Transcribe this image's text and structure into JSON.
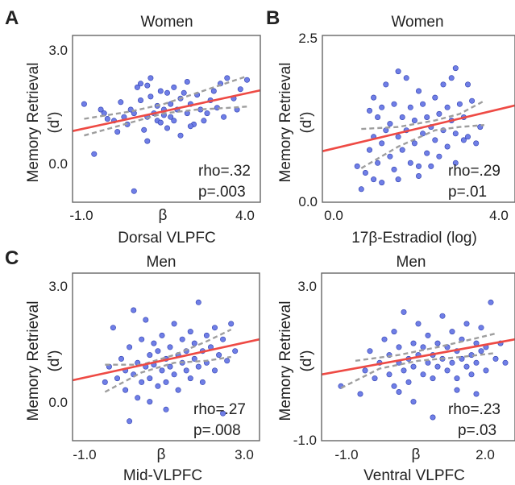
{
  "panel_labels": {
    "a": "A",
    "b": "B",
    "c": "C"
  },
  "chart_data": [
    {
      "type": "scatter",
      "title": "Women",
      "xlabel": "Dorsal VLPFC",
      "ylabel": "Memory Retrieval",
      "ylabel_unit": "(d')",
      "x_center_label": "β",
      "xlim": [
        -1.25,
        4.4
      ],
      "ylim": [
        -1.2,
        3.3
      ],
      "xticks": [
        {
          "v": -1.0,
          "label": "-1.0"
        },
        {
          "v": 4.0,
          "label": "4.0"
        }
      ],
      "yticks": [
        {
          "v": 0.0,
          "label": "0.0"
        },
        {
          "v": 3.0,
          "label": "3.0"
        }
      ],
      "stats": {
        "rho": "rho=.32",
        "p": "p=.003"
      },
      "fit": [
        [
          -1.25,
          0.72
        ],
        [
          4.4,
          1.82
        ]
      ],
      "ci_upper": [
        [
          -0.9,
          1.05
        ],
        [
          0.5,
          1.25
        ],
        [
          1.5,
          1.45
        ],
        [
          2.5,
          1.75
        ],
        [
          3.5,
          2.05
        ],
        [
          4.0,
          2.2
        ]
      ],
      "ci_lower": [
        [
          -0.9,
          0.6
        ],
        [
          0.5,
          0.95
        ],
        [
          1.5,
          1.2
        ],
        [
          2.5,
          1.3
        ],
        [
          3.5,
          1.35
        ],
        [
          4.0,
          1.38
        ]
      ],
      "points": [
        [
          -0.9,
          1.45
        ],
        [
          -0.6,
          0.1
        ],
        [
          -0.4,
          1.3
        ],
        [
          -0.2,
          1.05
        ],
        [
          0.0,
          1.0
        ],
        [
          0.1,
          0.7
        ],
        [
          0.2,
          1.5
        ],
        [
          0.3,
          1.1
        ],
        [
          0.4,
          0.9
        ],
        [
          0.5,
          1.3
        ],
        [
          0.6,
          1.2
        ],
        [
          0.7,
          1.9
        ],
        [
          0.8,
          2.0
        ],
        [
          0.8,
          1.55
        ],
        [
          0.9,
          0.75
        ],
        [
          1.0,
          1.1
        ],
        [
          1.0,
          0.45
        ],
        [
          1.1,
          2.15
        ],
        [
          1.1,
          1.65
        ],
        [
          1.2,
          1.2
        ],
        [
          1.3,
          1.4
        ],
        [
          1.3,
          1.0
        ],
        [
          1.4,
          1.8
        ],
        [
          1.4,
          0.95
        ],
        [
          1.5,
          1.3
        ],
        [
          1.6,
          1.75
        ],
        [
          1.6,
          0.8
        ],
        [
          1.7,
          1.1
        ],
        [
          1.7,
          1.45
        ],
        [
          1.8,
          1.9
        ],
        [
          1.8,
          1.0
        ],
        [
          1.9,
          1.3
        ],
        [
          2.0,
          1.6
        ],
        [
          2.0,
          0.6
        ],
        [
          2.1,
          1.75
        ],
        [
          2.2,
          1.2
        ],
        [
          2.2,
          2.05
        ],
        [
          2.3,
          1.45
        ],
        [
          2.4,
          0.9
        ],
        [
          2.5,
          1.7
        ],
        [
          2.6,
          1.3
        ],
        [
          2.7,
          1.0
        ],
        [
          2.8,
          1.2
        ],
        [
          2.9,
          1.55
        ],
        [
          3.0,
          1.8
        ],
        [
          3.1,
          1.35
        ],
        [
          3.2,
          2.0
        ],
        [
          3.4,
          2.15
        ],
        [
          3.6,
          1.6
        ],
        [
          3.7,
          1.3
        ],
        [
          4.0,
          2.1
        ],
        [
          -0.3,
          1.2
        ],
        [
          0.6,
          -0.9
        ],
        [
          1.0,
          1.95
        ],
        [
          1.5,
          1.15
        ],
        [
          2.3,
          0.85
        ],
        [
          3.3,
          1.1
        ],
        [
          3.8,
          1.85
        ]
      ]
    },
    {
      "type": "scatter",
      "title": "Women",
      "xlabel": "17β-Estradiol (log)",
      "ylabel": "Memory Retrieval",
      "ylabel_unit": "(d')",
      "xlim": [
        -0.35,
        4.35
      ],
      "ylim": [
        0.0,
        2.55
      ],
      "xticks": [
        {
          "v": 0.0,
          "label": "0.0"
        },
        {
          "v": 4.0,
          "label": "4.0"
        }
      ],
      "yticks": [
        {
          "v": 0.0,
          "label": "0.0"
        },
        {
          "v": 2.5,
          "label": "2.5"
        }
      ],
      "stats": {
        "rho": "rho=.29",
        "p": "p=.01"
      },
      "fit": [
        [
          -0.35,
          0.78
        ],
        [
          4.35,
          1.48
        ]
      ],
      "ci_upper": [
        [
          0.6,
          1.12
        ],
        [
          1.5,
          1.15
        ],
        [
          2.4,
          1.25
        ],
        [
          3.0,
          1.35
        ],
        [
          3.6,
          1.55
        ]
      ],
      "ci_lower": [
        [
          0.6,
          0.52
        ],
        [
          1.5,
          0.85
        ],
        [
          2.4,
          1.1
        ],
        [
          3.0,
          1.15
        ],
        [
          3.6,
          1.18
        ]
      ],
      "points": [
        [
          0.5,
          0.55
        ],
        [
          0.6,
          0.2
        ],
        [
          0.7,
          0.45
        ],
        [
          0.8,
          1.4
        ],
        [
          0.8,
          0.8
        ],
        [
          0.9,
          1.0
        ],
        [
          0.9,
          1.6
        ],
        [
          1.0,
          0.6
        ],
        [
          1.0,
          1.3
        ],
        [
          1.1,
          0.9
        ],
        [
          1.1,
          0.3
        ],
        [
          1.2,
          1.1
        ],
        [
          1.2,
          1.8
        ],
        [
          1.3,
          0.7
        ],
        [
          1.3,
          1.2
        ],
        [
          1.4,
          0.5
        ],
        [
          1.4,
          1.5
        ],
        [
          1.5,
          1.0
        ],
        [
          1.5,
          0.35
        ],
        [
          1.6,
          1.3
        ],
        [
          1.6,
          0.8
        ],
        [
          1.7,
          1.9
        ],
        [
          1.7,
          1.1
        ],
        [
          1.8,
          0.6
        ],
        [
          1.8,
          1.45
        ],
        [
          1.9,
          0.9
        ],
        [
          1.9,
          1.25
        ],
        [
          2.0,
          1.7
        ],
        [
          2.0,
          0.4
        ],
        [
          2.1,
          1.05
        ],
        [
          2.1,
          1.5
        ],
        [
          2.2,
          0.75
        ],
        [
          2.2,
          1.3
        ],
        [
          2.3,
          1.15
        ],
        [
          2.3,
          0.55
        ],
        [
          2.4,
          1.6
        ],
        [
          2.4,
          0.95
        ],
        [
          2.5,
          1.35
        ],
        [
          2.5,
          0.7
        ],
        [
          2.6,
          1.8
        ],
        [
          2.6,
          1.1
        ],
        [
          2.7,
          1.45
        ],
        [
          2.7,
          0.85
        ],
        [
          2.8,
          1.25
        ],
        [
          2.8,
          1.9
        ],
        [
          2.9,
          0.6
        ],
        [
          2.9,
          1.05
        ],
        [
          3.0,
          1.5
        ],
        [
          3.1,
          0.95
        ],
        [
          3.1,
          1.3
        ],
        [
          3.2,
          1.0
        ],
        [
          3.3,
          1.55
        ],
        [
          3.4,
          0.9
        ],
        [
          3.5,
          1.15
        ],
        [
          1.5,
          2.0
        ],
        [
          2.9,
          2.05
        ],
        [
          3.2,
          1.8
        ],
        [
          1.1,
          1.45
        ],
        [
          2.0,
          0.55
        ],
        [
          0.9,
          0.35
        ]
      ]
    },
    {
      "type": "scatter",
      "title": "Men",
      "xlabel": "Mid-VLPFC",
      "ylabel": "Memory Retrieval",
      "ylabel_unit": "(d')",
      "x_center_label": "β",
      "xlim": [
        -1.3,
        3.3
      ],
      "ylim": [
        -1.0,
        3.3
      ],
      "xticks": [
        {
          "v": -1.0,
          "label": "-1.0"
        },
        {
          "v": 3.0,
          "label": "3.0"
        }
      ],
      "yticks": [
        {
          "v": 0.0,
          "label": "0.0"
        },
        {
          "v": 3.0,
          "label": "3.0"
        }
      ],
      "stats": {
        "rho": "rho=.27",
        "p": "p=.008"
      },
      "fit": [
        [
          -1.3,
          0.55
        ],
        [
          3.3,
          1.6
        ]
      ],
      "ci_upper": [
        [
          -0.5,
          0.95
        ],
        [
          0.4,
          0.95
        ],
        [
          1.2,
          1.2
        ],
        [
          2.0,
          1.55
        ],
        [
          2.6,
          1.85
        ]
      ],
      "ci_lower": [
        [
          -0.5,
          0.25
        ],
        [
          0.4,
          0.75
        ],
        [
          1.2,
          1.0
        ],
        [
          2.0,
          1.05
        ],
        [
          2.6,
          1.15
        ]
      ],
      "points": [
        [
          -0.5,
          0.5
        ],
        [
          -0.4,
          0.9
        ],
        [
          -0.3,
          1.9
        ],
        [
          -0.2,
          0.6
        ],
        [
          -0.1,
          1.1
        ],
        [
          0.0,
          0.3
        ],
        [
          0.0,
          0.8
        ],
        [
          0.1,
          1.4
        ],
        [
          0.2,
          2.35
        ],
        [
          0.2,
          0.7
        ],
        [
          0.3,
          1.0
        ],
        [
          0.3,
          0.1
        ],
        [
          0.4,
          1.6
        ],
        [
          0.4,
          0.5
        ],
        [
          0.5,
          0.9
        ],
        [
          0.5,
          2.1
        ],
        [
          0.6,
          1.2
        ],
        [
          0.6,
          0.6
        ],
        [
          0.7,
          1.5
        ],
        [
          0.7,
          0.95
        ],
        [
          0.8,
          0.4
        ],
        [
          0.8,
          1.3
        ],
        [
          0.9,
          1.7
        ],
        [
          0.9,
          0.8
        ],
        [
          1.0,
          1.1
        ],
        [
          1.0,
          0.5
        ],
        [
          1.1,
          1.4
        ],
        [
          1.1,
          0.9
        ],
        [
          1.2,
          2.0
        ],
        [
          1.2,
          0.7
        ],
        [
          1.3,
          1.2
        ],
        [
          1.3,
          0.3
        ],
        [
          1.4,
          1.6
        ],
        [
          1.4,
          1.0
        ],
        [
          1.5,
          0.8
        ],
        [
          1.5,
          1.3
        ],
        [
          1.6,
          1.8
        ],
        [
          1.6,
          0.6
        ],
        [
          1.7,
          1.1
        ],
        [
          1.7,
          1.5
        ],
        [
          1.8,
          0.9
        ],
        [
          1.8,
          2.55
        ],
        [
          1.9,
          1.3
        ],
        [
          1.9,
          0.5
        ],
        [
          2.0,
          1.7
        ],
        [
          2.0,
          1.0
        ],
        [
          2.1,
          1.4
        ],
        [
          2.2,
          0.8
        ],
        [
          2.2,
          1.9
        ],
        [
          2.3,
          1.2
        ],
        [
          2.4,
          1.6
        ],
        [
          2.5,
          1.05
        ],
        [
          2.6,
          2.0
        ],
        [
          2.7,
          1.3
        ],
        [
          0.1,
          -0.5
        ],
        [
          1.0,
          -0.2
        ],
        [
          2.4,
          -0.3
        ],
        [
          0.6,
          0.0
        ]
      ]
    },
    {
      "type": "scatter",
      "title": "Men",
      "xlabel": "Ventral VLPFC",
      "ylabel": "Memory Retrieval",
      "ylabel_unit": "(d')",
      "x_center_label": "β",
      "xlim": [
        -1.4,
        2.6
      ],
      "ylim": [
        -1.0,
        3.3
      ],
      "xticks": [
        {
          "v": -1.0,
          "label": "-1.0"
        },
        {
          "v": 2.0,
          "label": "2.0"
        }
      ],
      "yticks": [
        {
          "v": -1.0,
          "label": "-1.0"
        },
        {
          "v": 3.0,
          "label": "3.0"
        }
      ],
      "stats": {
        "rho": "rho=.23",
        "p": "p=.03"
      },
      "fit": [
        [
          -1.4,
          0.7
        ],
        [
          2.6,
          1.6
        ]
      ],
      "ci_upper": [
        [
          -0.7,
          1.05
        ],
        [
          0.2,
          1.2
        ],
        [
          1.0,
          1.4
        ],
        [
          1.7,
          1.6
        ],
        [
          2.2,
          1.75
        ]
      ],
      "ci_lower": [
        [
          -1.0,
          0.35
        ],
        [
          -0.2,
          0.85
        ],
        [
          0.6,
          1.05
        ],
        [
          1.5,
          1.15
        ],
        [
          2.2,
          1.25
        ]
      ],
      "points": [
        [
          -1.0,
          0.4
        ],
        [
          -0.5,
          0.8
        ],
        [
          -0.4,
          1.3
        ],
        [
          -0.3,
          0.6
        ],
        [
          -0.2,
          1.0
        ],
        [
          -0.1,
          1.6
        ],
        [
          0.0,
          0.7
        ],
        [
          0.0,
          1.2
        ],
        [
          0.1,
          0.4
        ],
        [
          0.1,
          1.8
        ],
        [
          0.2,
          1.0
        ],
        [
          0.2,
          1.4
        ],
        [
          0.3,
          0.8
        ],
        [
          0.3,
          2.3
        ],
        [
          0.4,
          1.1
        ],
        [
          0.4,
          0.5
        ],
        [
          0.5,
          1.5
        ],
        [
          0.5,
          0.9
        ],
        [
          0.6,
          2.0
        ],
        [
          0.6,
          1.2
        ],
        [
          0.7,
          0.7
        ],
        [
          0.7,
          1.4
        ],
        [
          0.8,
          1.0
        ],
        [
          0.8,
          1.7
        ],
        [
          0.9,
          0.6
        ],
        [
          0.9,
          1.2
        ],
        [
          1.0,
          1.5
        ],
        [
          1.0,
          0.9
        ],
        [
          1.1,
          2.2
        ],
        [
          1.1,
          1.1
        ],
        [
          1.2,
          0.8
        ],
        [
          1.2,
          1.4
        ],
        [
          1.3,
          1.0
        ],
        [
          1.3,
          1.8
        ],
        [
          1.4,
          0.6
        ],
        [
          1.4,
          1.3
        ],
        [
          1.5,
          1.1
        ],
        [
          1.5,
          1.6
        ],
        [
          1.6,
          0.9
        ],
        [
          1.6,
          2.0
        ],
        [
          1.7,
          1.2
        ],
        [
          1.7,
          0.7
        ],
        [
          1.8,
          1.5
        ],
        [
          1.8,
          1.0
        ],
        [
          1.9,
          1.3
        ],
        [
          1.9,
          1.9
        ],
        [
          2.0,
          0.8
        ],
        [
          2.0,
          1.4
        ],
        [
          2.1,
          2.55
        ],
        [
          2.2,
          1.1
        ],
        [
          2.3,
          1.5
        ],
        [
          2.4,
          1.0
        ],
        [
          -0.6,
          0.2
        ],
        [
          0.5,
          0.0
        ],
        [
          0.9,
          -0.4
        ],
        [
          1.4,
          0.3
        ],
        [
          1.8,
          0.2
        ],
        [
          0.2,
          0.25
        ]
      ]
    }
  ]
}
